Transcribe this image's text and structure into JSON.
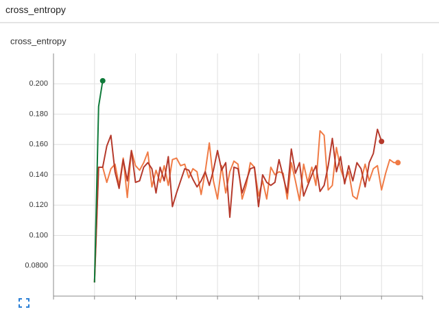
{
  "header": {
    "title": "cross_entropy"
  },
  "chart_data": {
    "type": "line",
    "title": "cross_entropy",
    "x": [
      0,
      1,
      2,
      3,
      4,
      5,
      6,
      7,
      8,
      9,
      10,
      11,
      12,
      13,
      14,
      15,
      16,
      17,
      18,
      19,
      20,
      21,
      22,
      23,
      24,
      25,
      26,
      27,
      28,
      29,
      30,
      31,
      32,
      33,
      34,
      35,
      36,
      37,
      38,
      39,
      40,
      41,
      42,
      43,
      44,
      45,
      46,
      47,
      48,
      49,
      50,
      51,
      52,
      53,
      54,
      55,
      56,
      57,
      58,
      59,
      60,
      61,
      62,
      63,
      64,
      65,
      66,
      67,
      68,
      69,
      70,
      71,
      72,
      73,
      74
    ],
    "series": [
      {
        "color": "#f07b45",
        "values": [
          0.069,
          0.145,
          0.145,
          0.135,
          0.144,
          0.147,
          0.133,
          0.151,
          0.125,
          0.156,
          0.146,
          0.143,
          0.148,
          0.155,
          0.132,
          0.143,
          0.135,
          0.146,
          0.133,
          0.15,
          0.151,
          0.146,
          0.147,
          0.138,
          0.144,
          0.142,
          0.127,
          0.142,
          0.161,
          0.136,
          0.124,
          0.146,
          0.128,
          0.142,
          0.149,
          0.147,
          0.124,
          0.133,
          0.148,
          0.145,
          0.126,
          0.136,
          0.124,
          0.145,
          0.14,
          0.142,
          0.141,
          0.124,
          0.148,
          0.136,
          0.123,
          0.147,
          0.135,
          0.145,
          0.133,
          0.169,
          0.166,
          0.13,
          0.133,
          0.158,
          0.144,
          0.136,
          0.142,
          0.126,
          0.124,
          0.136,
          0.147,
          0.136,
          0.144,
          0.146,
          0.13,
          0.141,
          0.15,
          0.148,
          0.148
        ]
      },
      {
        "color": "#b5392b",
        "values": [
          0.069,
          0.145,
          0.145,
          0.159,
          0.166,
          0.142,
          0.131,
          0.15,
          0.136,
          0.156,
          0.135,
          0.136,
          0.145,
          0.148,
          0.144,
          0.128,
          0.145,
          0.136,
          0.152,
          0.119,
          0.128,
          0.136,
          0.144,
          0.143,
          0.137,
          0.132,
          0.136,
          0.142,
          0.133,
          0.143,
          0.156,
          0.143,
          0.148,
          0.112,
          0.145,
          0.144,
          0.128,
          0.136,
          0.144,
          0.145,
          0.119,
          0.14,
          0.135,
          0.133,
          0.135,
          0.15,
          0.139,
          0.128,
          0.157,
          0.141,
          0.148,
          0.126,
          0.133,
          0.14,
          0.146,
          0.129,
          0.133,
          0.146,
          0.164,
          0.142,
          0.152,
          0.134,
          0.146,
          0.136,
          0.148,
          0.144,
          0.132,
          0.148,
          0.154,
          0.17,
          0.162,
          null,
          null,
          null,
          null
        ]
      },
      {
        "color": "#0f7a3a",
        "values": [
          0.069,
          0.185,
          0.202,
          null,
          null,
          null,
          null,
          null,
          null,
          null,
          null,
          null,
          null,
          null,
          null,
          null,
          null,
          null,
          null,
          null,
          null,
          null,
          null,
          null,
          null,
          null,
          null,
          null,
          null,
          null,
          null,
          null,
          null,
          null,
          null,
          null,
          null,
          null,
          null,
          null,
          null,
          null,
          null,
          null,
          null,
          null,
          null,
          null,
          null,
          null,
          null,
          null,
          null,
          null,
          null,
          null,
          null,
          null,
          null,
          null,
          null,
          null,
          null,
          null,
          null,
          null,
          null,
          null,
          null,
          null,
          null,
          null,
          null,
          null,
          null
        ]
      }
    ],
    "xlim": [
      -10,
      80
    ],
    "xticks": [
      -10,
      0,
      10,
      20,
      30,
      40,
      50,
      60,
      70,
      80
    ],
    "ylim": [
      0.06,
      0.22
    ],
    "yticks": [
      {
        "value": 0.08,
        "label": "0.0800"
      },
      {
        "value": 0.1,
        "label": "0.100"
      },
      {
        "value": 0.12,
        "label": "0.120"
      },
      {
        "value": 0.14,
        "label": "0.140"
      },
      {
        "value": 0.16,
        "label": "0.160"
      },
      {
        "value": 0.18,
        "label": "0.180"
      },
      {
        "value": 0.2,
        "label": "0.200"
      }
    ],
    "grid": true
  }
}
